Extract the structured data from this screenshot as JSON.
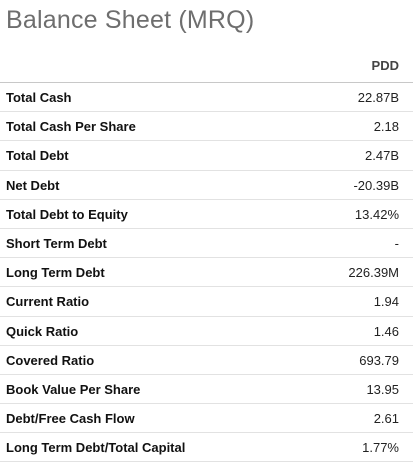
{
  "title": "Balance Sheet (MRQ)",
  "table": {
    "column_header": "PDD",
    "rows": [
      {
        "label": "Total Cash",
        "value": "22.87B"
      },
      {
        "label": "Total Cash Per Share",
        "value": "2.18"
      },
      {
        "label": "Total Debt",
        "value": "2.47B"
      },
      {
        "label": "Net Debt",
        "value": "-20.39B"
      },
      {
        "label": "Total Debt to Equity",
        "value": "13.42%"
      },
      {
        "label": "Short Term Debt",
        "value": "-"
      },
      {
        "label": "Long Term Debt",
        "value": "226.39M"
      },
      {
        "label": "Current Ratio",
        "value": "1.94"
      },
      {
        "label": "Quick Ratio",
        "value": "1.46"
      },
      {
        "label": "Covered Ratio",
        "value": "693.79"
      },
      {
        "label": "Book Value Per Share",
        "value": "13.95"
      },
      {
        "label": "Debt/Free Cash Flow",
        "value": "2.61"
      },
      {
        "label": "Long Term Debt/Total Capital",
        "value": "1.77%"
      }
    ]
  }
}
